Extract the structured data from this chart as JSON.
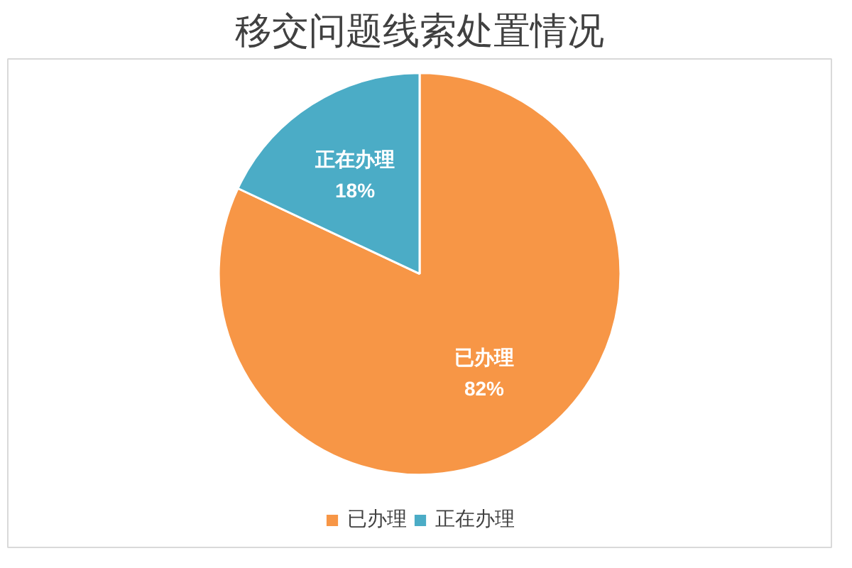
{
  "chart_data": {
    "type": "pie",
    "title": "移交问题线索处置情况",
    "categories": [
      "已办理",
      "正在办理"
    ],
    "values": [
      82,
      18
    ],
    "colors": [
      "#f79646",
      "#4bacc6"
    ],
    "value_labels": [
      "82%",
      "18%"
    ],
    "legend": "bottom"
  }
}
